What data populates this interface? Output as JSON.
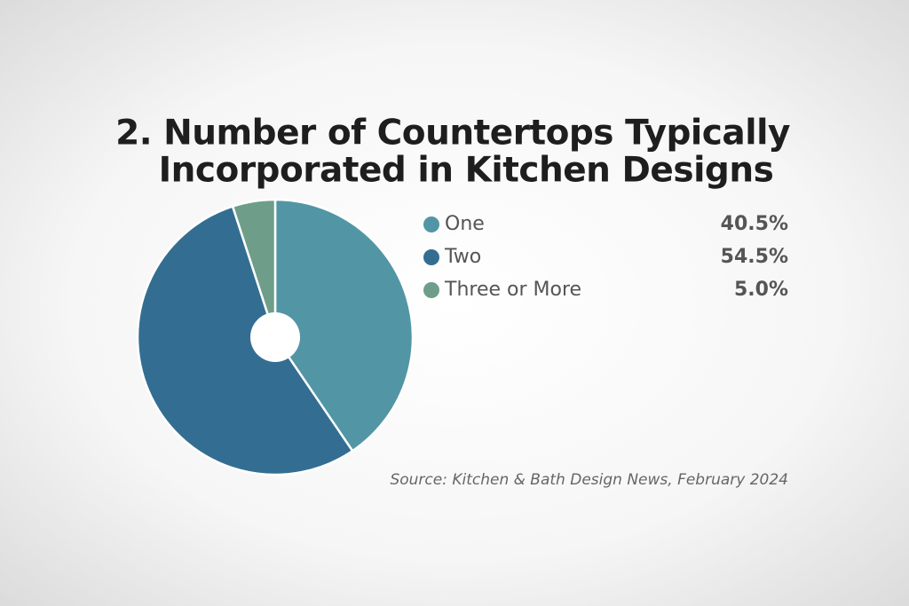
{
  "chart_data": {
    "type": "pie",
    "title": [
      "2. Number of Countertops Typically",
      "Incorporated in Kitchen Designs"
    ],
    "categories": [
      "One",
      "Two",
      "Three or More"
    ],
    "values": [
      40.5,
      54.5,
      5.0
    ],
    "value_labels": [
      "40.5%",
      "54.5%",
      "5.0%"
    ],
    "colors": [
      "#5296a5",
      "#336e92",
      "#6e9e8a"
    ],
    "source": "Source: Kitchen & Bath Design News, February 2024"
  }
}
